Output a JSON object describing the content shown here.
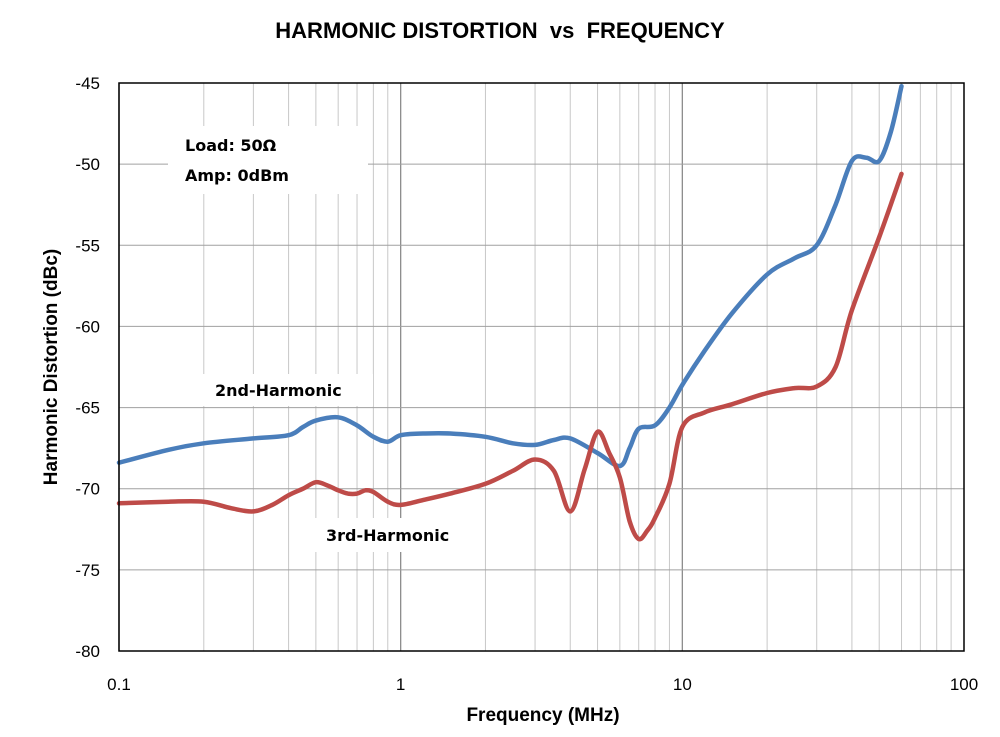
{
  "chart_data": {
    "type": "line",
    "title": "HARMONIC DISTORTION  vs  FREQUENCY",
    "xlabel": "Frequency (MHz)",
    "ylabel": "Harmonic Distortion (dBc)",
    "xscale": "log",
    "xlim": [
      0.1,
      100
    ],
    "ylim": [
      -80,
      -45
    ],
    "grid": true,
    "x_tick_labels": [
      "0.1",
      "1",
      "10",
      "100"
    ],
    "y_tick_labels": [
      "-45",
      "-50",
      "-55",
      "-60",
      "-65",
      "-70",
      "-75",
      "-80"
    ],
    "x_ticks": [
      0.1,
      1,
      10,
      100
    ],
    "y_ticks": [
      -45,
      -50,
      -55,
      -60,
      -65,
      -70,
      -75,
      -80
    ],
    "annotations": {
      "load": "Load: 50Ω",
      "amp": "Amp: 0dBm",
      "second": "2nd-Harmonic",
      "third": "3rd-Harmonic"
    },
    "series": [
      {
        "name": "2nd-Harmonic",
        "color": "#4a7ebb",
        "x": [
          0.1,
          0.15,
          0.2,
          0.3,
          0.4,
          0.45,
          0.5,
          0.6,
          0.7,
          0.8,
          0.9,
          1.0,
          1.2,
          1.5,
          2,
          2.5,
          3,
          3.5,
          4,
          5,
          6,
          6.5,
          7,
          8,
          9,
          10,
          12,
          15,
          20,
          25,
          30,
          35,
          40,
          45,
          50,
          55,
          60
        ],
        "values": [
          -68.4,
          -67.6,
          -67.2,
          -66.9,
          -66.7,
          -66.2,
          -65.8,
          -65.6,
          -66.1,
          -66.8,
          -67.1,
          -66.7,
          -66.6,
          -66.6,
          -66.8,
          -67.2,
          -67.3,
          -67.0,
          -66.9,
          -67.8,
          -68.6,
          -67.5,
          -66.3,
          -66.1,
          -65.0,
          -63.6,
          -61.5,
          -59.2,
          -56.8,
          -55.8,
          -55.0,
          -52.5,
          -49.8,
          -49.6,
          -49.8,
          -48.0,
          -45.2
        ]
      },
      {
        "name": "3rd-Harmonic",
        "color": "#be4b48",
        "x": [
          0.1,
          0.15,
          0.2,
          0.25,
          0.3,
          0.35,
          0.4,
          0.45,
          0.5,
          0.55,
          0.6,
          0.65,
          0.7,
          0.75,
          0.8,
          0.9,
          1.0,
          1.2,
          1.5,
          2,
          2.5,
          3,
          3.5,
          4,
          4.5,
          5,
          5.5,
          6,
          6.5,
          7,
          7.5,
          8,
          9,
          10,
          12,
          15,
          20,
          25,
          30,
          35,
          40,
          50,
          60
        ],
        "values": [
          -70.9,
          -70.8,
          -70.8,
          -71.2,
          -71.4,
          -71.0,
          -70.4,
          -70.0,
          -69.6,
          -69.8,
          -70.1,
          -70.3,
          -70.3,
          -70.1,
          -70.2,
          -70.8,
          -71.0,
          -70.7,
          -70.3,
          -69.7,
          -68.9,
          -68.2,
          -68.9,
          -71.4,
          -68.8,
          -66.5,
          -67.8,
          -69.3,
          -72.0,
          -73.1,
          -72.6,
          -71.8,
          -69.7,
          -66.2,
          -65.3,
          -64.8,
          -64.1,
          -63.8,
          -63.7,
          -62.5,
          -59.0,
          -54.5,
          -50.6
        ]
      }
    ]
  }
}
